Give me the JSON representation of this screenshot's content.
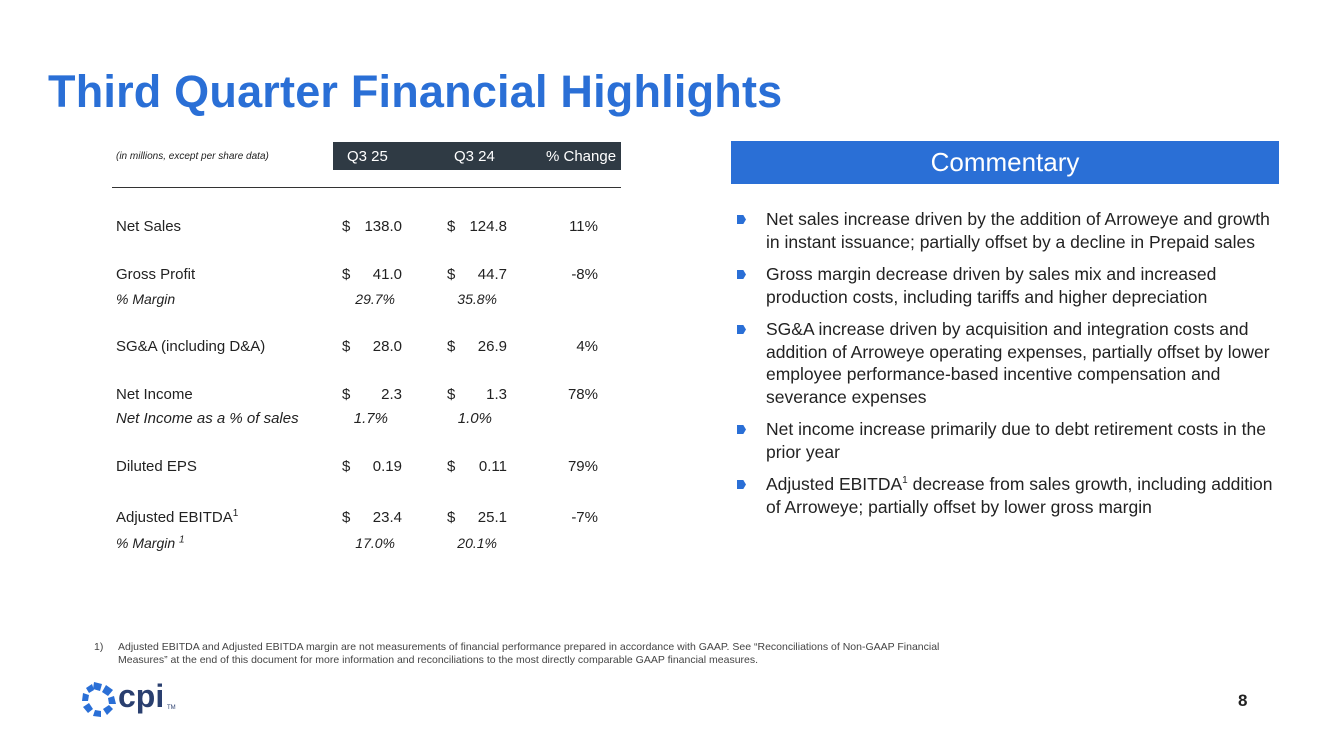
{
  "slide": {
    "title": "Third Quarter Financial Highlights",
    "page_number": "8"
  },
  "colors": {
    "accent_blue": "#2a6fd6",
    "header_bar": "#2f3a44",
    "logo_navy": "#2a3f6f"
  },
  "table": {
    "note": "(in millions, except per share data)",
    "columns": [
      "Q3 25",
      "Q3 24",
      "% Change"
    ],
    "rows": [
      {
        "label": "Net Sales",
        "cur_sym": "$",
        "cur": "138.0",
        "pri_sym": "$",
        "pri": "124.8",
        "chg": "11%"
      },
      {
        "label": "Gross Profit",
        "cur_sym": "$",
        "cur": "41.0",
        "pri_sym": "$",
        "pri": "44.7",
        "chg": "-8%"
      },
      {
        "label": "% Margin",
        "cur": "29.7%",
        "pri": "35.8%"
      },
      {
        "label": "SG&A (including D&A)",
        "cur_sym": "$",
        "cur": "28.0",
        "pri_sym": "$",
        "pri": "26.9",
        "chg": "4%"
      },
      {
        "label": "Net Income",
        "cur_sym": "$",
        "cur": "2.3",
        "pri_sym": "$",
        "pri": "1.3",
        "chg": "78%"
      },
      {
        "label": "Net Income as a % of sales",
        "cur": "1.7%",
        "pri": "1.0%"
      },
      {
        "label": "Diluted EPS",
        "cur_sym": "$",
        "cur": "0.19",
        "pri_sym": "$",
        "pri": "0.11",
        "chg": "79%"
      },
      {
        "label": "Adjusted EBITDA",
        "sup": "1",
        "cur_sym": "$",
        "cur": "23.4",
        "pri_sym": "$",
        "pri": "25.1",
        "chg": "-7%"
      },
      {
        "label": "% Margin ",
        "sup": "1",
        "cur": "17.0%",
        "pri": "20.1%"
      }
    ]
  },
  "commentary": {
    "heading": "Commentary",
    "bullets": [
      {
        "text": "Net sales increase driven by the addition of Arroweye and growth in instant issuance; partially offset by a decline in Prepaid sales"
      },
      {
        "text": "Gross margin decrease driven by sales mix and increased production costs, including tariffs and higher depreciation"
      },
      {
        "text": "SG&A increase driven by acquisition and integration costs and addition of Arroweye operating expenses, partially offset by lower employee performance-based incentive compensation and severance expenses"
      },
      {
        "text": "Net income increase primarily due to debt retirement costs in the prior year"
      },
      {
        "pre": "Adjusted EBITDA",
        "sup": "1",
        "post": " decrease from sales growth, including addition of Arroweye; partially offset by lower gross margin"
      }
    ]
  },
  "footnote": {
    "number": "1)",
    "text": "Adjusted EBITDA and Adjusted EBITDA margin are not measurements of financial performance prepared in accordance with GAAP. See “Reconciliations of Non-GAAP Financial Measures” at the end of this document for more information and reconciliations to the most directly comparable GAAP financial measures."
  },
  "logo": {
    "text": "cpi",
    "tm": "TM"
  }
}
